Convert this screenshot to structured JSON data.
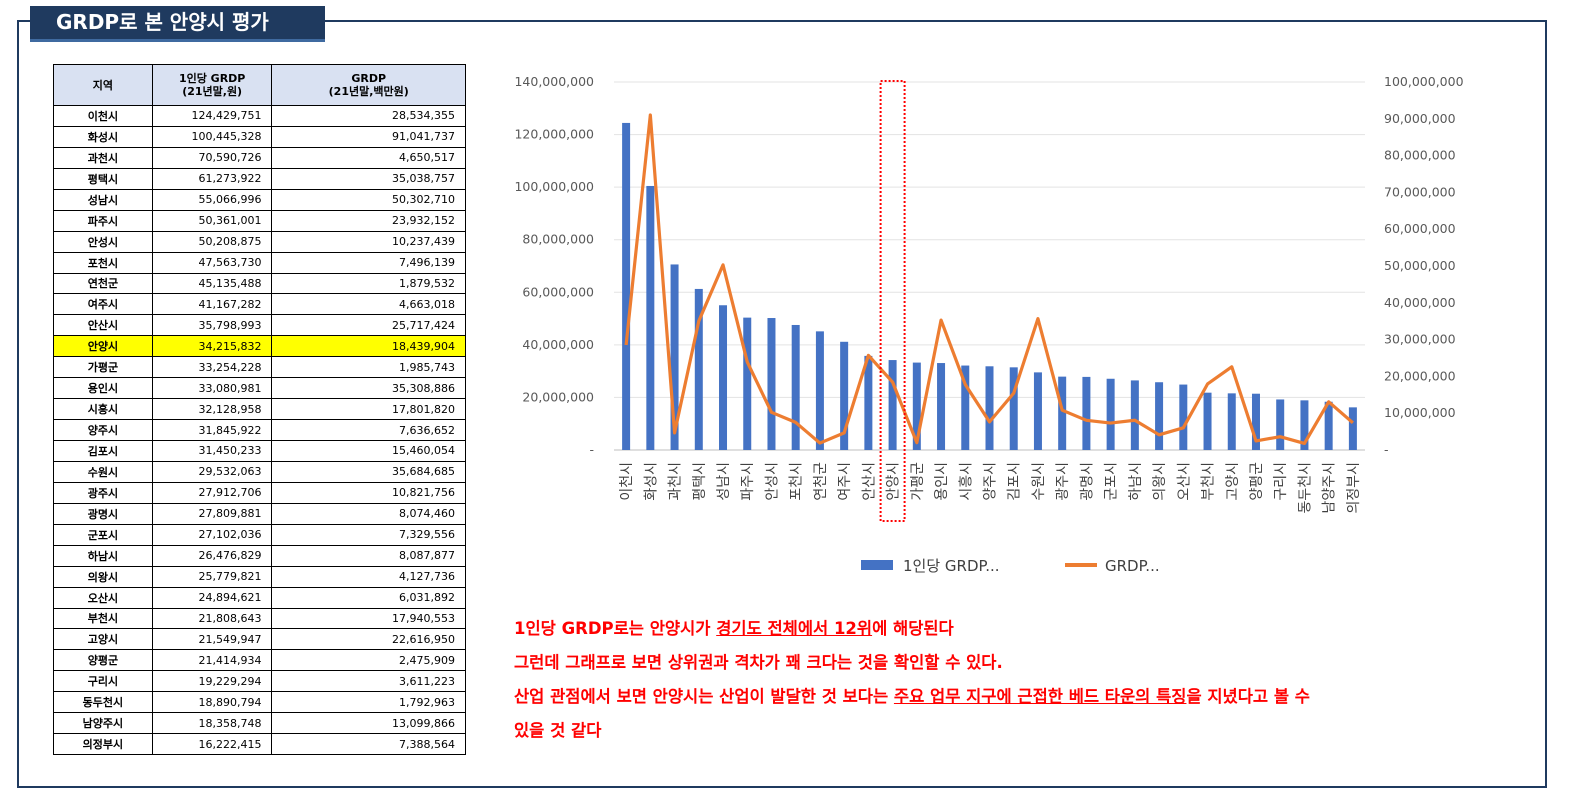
{
  "title": "GRDP로 본 안양시 평가",
  "table": {
    "headers": [
      {
        "line1": "지역",
        "line2": ""
      },
      {
        "line1": "1인당 GRDP",
        "line2": "(21년말,원)"
      },
      {
        "line1": "GRDP",
        "line2": "(21년말,백만원)"
      }
    ],
    "rows": [
      {
        "name": "이천시",
        "per": "124,429,751",
        "total": "28,534,355"
      },
      {
        "name": "화성시",
        "per": "100,445,328",
        "total": "91,041,737"
      },
      {
        "name": "과천시",
        "per": "70,590,726",
        "total": "4,650,517"
      },
      {
        "name": "평택시",
        "per": "61,273,922",
        "total": "35,038,757"
      },
      {
        "name": "성남시",
        "per": "55,066,996",
        "total": "50,302,710"
      },
      {
        "name": "파주시",
        "per": "50,361,001",
        "total": "23,932,152"
      },
      {
        "name": "안성시",
        "per": "50,208,875",
        "total": "10,237,439"
      },
      {
        "name": "포천시",
        "per": "47,563,730",
        "total": "7,496,139"
      },
      {
        "name": "연천군",
        "per": "45,135,488",
        "total": "1,879,532"
      },
      {
        "name": "여주시",
        "per": "41,167,282",
        "total": "4,663,018"
      },
      {
        "name": "안산시",
        "per": "35,798,993",
        "total": "25,717,424"
      },
      {
        "name": "안양시",
        "per": "34,215,832",
        "total": "18,439,904"
      },
      {
        "name": "가평군",
        "per": "33,254,228",
        "total": "1,985,743"
      },
      {
        "name": "용인시",
        "per": "33,080,981",
        "total": "35,308,886"
      },
      {
        "name": "시흥시",
        "per": "32,128,958",
        "total": "17,801,820"
      },
      {
        "name": "양주시",
        "per": "31,845,922",
        "total": "7,636,652"
      },
      {
        "name": "김포시",
        "per": "31,450,233",
        "total": "15,460,054"
      },
      {
        "name": "수원시",
        "per": "29,532,063",
        "total": "35,684,685"
      },
      {
        "name": "광주시",
        "per": "27,912,706",
        "total": "10,821,756"
      },
      {
        "name": "광명시",
        "per": "27,809,881",
        "total": "8,074,460"
      },
      {
        "name": "군포시",
        "per": "27,102,036",
        "total": "7,329,556"
      },
      {
        "name": "하남시",
        "per": "26,476,829",
        "total": "8,087,877"
      },
      {
        "name": "의왕시",
        "per": "25,779,821",
        "total": "4,127,736"
      },
      {
        "name": "오산시",
        "per": "24,894,621",
        "total": "6,031,892"
      },
      {
        "name": "부천시",
        "per": "21,808,643",
        "total": "17,940,553"
      },
      {
        "name": "고양시",
        "per": "21,549,947",
        "total": "22,616,950"
      },
      {
        "name": "양평군",
        "per": "21,414,934",
        "total": "2,475,909"
      },
      {
        "name": "구리시",
        "per": "19,229,294",
        "total": "3,611,223"
      },
      {
        "name": "동두천시",
        "per": "18,890,794",
        "total": "1,792,963"
      },
      {
        "name": "남양주시",
        "per": "18,358,748",
        "total": "13,099,866"
      },
      {
        "name": "의정부시",
        "per": "16,222,415",
        "total": "7,388,564"
      }
    ],
    "highlight_row": "안양시",
    "highlight_color": "#ffff00"
  },
  "chart_data": {
    "type": "bar+line",
    "categories": [
      "이천시",
      "화성시",
      "과천시",
      "평택시",
      "성남시",
      "파주시",
      "안성시",
      "포천시",
      "연천군",
      "여주시",
      "안산시",
      "안양시",
      "가평군",
      "용인시",
      "시흥시",
      "양주시",
      "김포시",
      "수원시",
      "광주시",
      "광명시",
      "군포시",
      "하남시",
      "의왕시",
      "오산시",
      "부천시",
      "고양시",
      "양평군",
      "구리시",
      "동두천시",
      "남양주시",
      "의정부시"
    ],
    "series": [
      {
        "name": "1인당 GRDP...",
        "type": "bar",
        "axis": "left",
        "color": "#4472c4",
        "values": [
          124429751,
          100445328,
          70590726,
          61273922,
          55066996,
          50361001,
          50208875,
          47563730,
          45135488,
          41167282,
          35798993,
          34215832,
          33254228,
          33080981,
          32128958,
          31845922,
          31450233,
          29532063,
          27912706,
          27809881,
          27102036,
          26476829,
          25779821,
          24894621,
          21808643,
          21549947,
          21414934,
          19229294,
          18890794,
          18358748,
          16222415
        ]
      },
      {
        "name": "GRDP...",
        "type": "line",
        "axis": "right",
        "color": "#ed7d31",
        "values": [
          28534355,
          91041737,
          4650517,
          35038757,
          50302710,
          23932152,
          10237439,
          7496139,
          1879532,
          4663018,
          25717424,
          18439904,
          1985743,
          35308886,
          17801820,
          7636652,
          15460054,
          35684685,
          10821756,
          8074460,
          7329556,
          8087877,
          4127736,
          6031892,
          17940553,
          22616950,
          2475909,
          3611223,
          1792963,
          13099866,
          7388564
        ]
      }
    ],
    "left_axis": {
      "ylim": [
        0,
        140000000
      ],
      "ticks": [
        "-",
        "20,000,000",
        "40,000,000",
        "60,000,000",
        "80,000,000",
        "100,000,000",
        "120,000,000",
        "140,000,000"
      ]
    },
    "right_axis": {
      "ylim": [
        0,
        100000000
      ],
      "ticks": [
        "-",
        "10,000,000",
        "20,000,000",
        "30,000,000",
        "40,000,000",
        "50,000,000",
        "60,000,000",
        "70,000,000",
        "80,000,000",
        "90,000,000",
        "100,000,000"
      ]
    },
    "grid": true,
    "legend_position": "bottom",
    "highlight_category": "안양시",
    "highlight_color": "#ff0000"
  },
  "notes": [
    [
      {
        "t": "1인당 GRDP로는 안양시가 ",
        "u": false
      },
      {
        "t": "경기도 전체에서 12위",
        "u": true
      },
      {
        "t": "에 해당된다",
        "u": false
      }
    ],
    [
      {
        "t": "그런데 그래프로 보면 상위권과 격차가 꽤 크다는 것을 확인할 수 있다.",
        "u": false
      }
    ],
    [
      {
        "t": "산업 관점에서 보면 안양시는 산업이 발달한 것 보다는 ",
        "u": false
      },
      {
        "t": "주요 업무 지구에 근접한 베드 타운의 특징",
        "u": true
      },
      {
        "t": "을 지녔다고 볼 수",
        "u": false
      }
    ],
    [
      {
        "t": "있을 것 같다",
        "u": false
      }
    ]
  ]
}
